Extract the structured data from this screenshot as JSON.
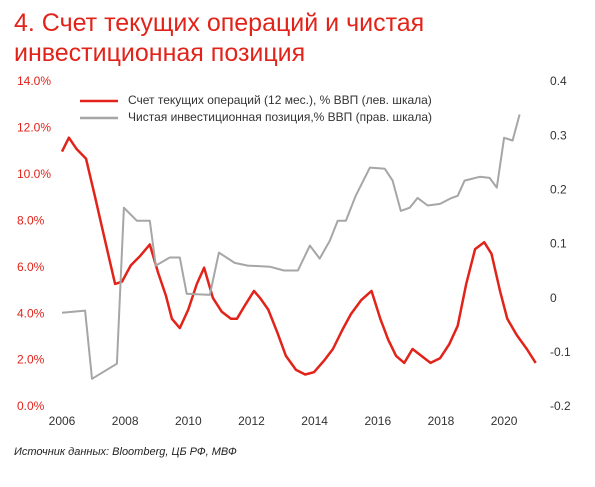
{
  "chart_data": {
    "type": "line",
    "title": "4. Счет текущих операций и чистая инвестиционная позиция",
    "source": "Источник данных: Bloomberg, ЦБ РФ, МВФ",
    "xlim": [
      2006,
      2021.2
    ],
    "xticks": [
      2006,
      2008,
      2010,
      2012,
      2014,
      2016,
      2018,
      2020
    ],
    "ylim": [
      0,
      14
    ],
    "yticks": [
      {
        "value": 0,
        "label": "0.0%"
      },
      {
        "value": 2,
        "label": "2.0%"
      },
      {
        "value": 4,
        "label": "4.0%"
      },
      {
        "value": 6,
        "label": "6.0%"
      },
      {
        "value": 8,
        "label": "8.0%"
      },
      {
        "value": 10,
        "label": "10.0%"
      },
      {
        "value": 12,
        "label": "12.0%"
      },
      {
        "value": 14,
        "label": "14.0%"
      }
    ],
    "y2lim": [
      -0.2,
      0.4
    ],
    "y2ticks": [
      -0.2,
      -0.1,
      0,
      0.1,
      0.2,
      0.3,
      0.4
    ],
    "grid": false,
    "legend": "top",
    "series": [
      {
        "name": "Счет текущих операций (12 мес.), % ВВП (лев. шкала)",
        "color": "#e2231a",
        "x": [
          2006.0,
          2006.22,
          2006.47,
          2006.76,
          2007.04,
          2007.36,
          2007.68,
          2007.9,
          2008.18,
          2008.47,
          2008.78,
          2009.04,
          2009.29,
          2009.48,
          2009.73,
          2010.0,
          2010.27,
          2010.5,
          2010.78,
          2011.06,
          2011.35,
          2011.54,
          2011.8,
          2012.08,
          2012.27,
          2012.53,
          2012.82,
          2013.09,
          2013.41,
          2013.7,
          2013.98,
          2014.3,
          2014.58,
          2014.87,
          2015.15,
          2015.47,
          2015.8,
          2016.08,
          2016.33,
          2016.58,
          2016.84,
          2017.1,
          2017.38,
          2017.67,
          2017.97,
          2018.26,
          2018.53,
          2018.8,
          2019.08,
          2019.37,
          2019.6,
          2019.87,
          2020.1,
          2020.4,
          2020.72,
          2021.0
        ],
        "values": [
          11.0,
          11.6,
          11.1,
          10.7,
          9.1,
          7.2,
          5.3,
          5.4,
          6.1,
          6.5,
          7.0,
          5.8,
          4.8,
          3.8,
          3.4,
          4.2,
          5.3,
          6.0,
          4.7,
          4.1,
          3.8,
          3.8,
          4.4,
          5.0,
          4.7,
          4.2,
          3.2,
          2.2,
          1.6,
          1.4,
          1.5,
          2.0,
          2.5,
          3.3,
          4.0,
          4.6,
          5.0,
          3.8,
          2.9,
          2.2,
          1.9,
          2.5,
          2.2,
          1.9,
          2.1,
          2.7,
          3.5,
          5.3,
          6.8,
          7.1,
          6.6,
          5.0,
          3.8,
          3.1,
          2.5,
          1.9
        ]
      },
      {
        "name": "Чистая инвестиционная позиция,% ВВП (прав. шкала)",
        "color": "#a6a6a6",
        "axis": "y2",
        "x": [
          2006.0,
          2006.73,
          2006.95,
          2007.74,
          2007.96,
          2008.37,
          2008.78,
          2008.97,
          2009.41,
          2009.73,
          2009.95,
          2010.68,
          2010.97,
          2011.47,
          2011.88,
          2012.58,
          2013.03,
          2013.47,
          2013.85,
          2014.16,
          2014.48,
          2014.73,
          2014.99,
          2015.3,
          2015.75,
          2016.22,
          2016.47,
          2016.73,
          2017.01,
          2017.26,
          2017.58,
          2017.97,
          2018.34,
          2018.53,
          2018.75,
          2019.23,
          2019.54,
          2019.77,
          2020.0,
          2020.27,
          2020.49
        ],
        "values": [
          -0.026,
          -0.022,
          -0.148,
          -0.12,
          0.168,
          0.144,
          0.144,
          0.061,
          0.076,
          0.076,
          0.009,
          0.007,
          0.085,
          0.066,
          0.061,
          0.059,
          0.052,
          0.052,
          0.098,
          0.074,
          0.107,
          0.144,
          0.144,
          0.19,
          0.242,
          0.24,
          0.218,
          0.162,
          0.168,
          0.186,
          0.172,
          0.175,
          0.186,
          0.19,
          0.218,
          0.225,
          0.223,
          0.205,
          0.297,
          0.292,
          0.34
        ]
      }
    ]
  }
}
